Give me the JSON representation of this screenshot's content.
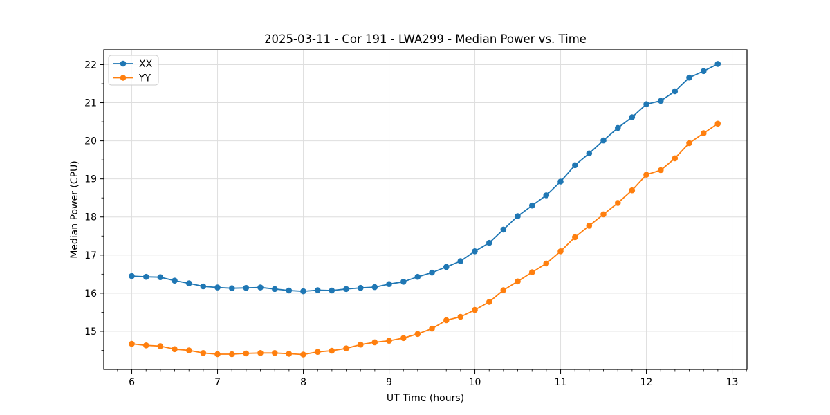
{
  "chart_data": {
    "type": "line",
    "title": "2025-03-11 - Cor 191 - LWA299 - Median Power vs. Time",
    "xlabel": "UT Time (hours)",
    "ylabel": "Median Power (CPU)",
    "xlim": [
      5.673,
      13.173
    ],
    "ylim": [
      14.0,
      22.39
    ],
    "xticks": [
      6,
      7,
      8,
      9,
      10,
      11,
      12,
      13
    ],
    "yticks": [
      15,
      16,
      17,
      18,
      19,
      20,
      21,
      22
    ],
    "x_minor_step": 0.1666667,
    "y_minor_step": 0.5,
    "grid": true,
    "grid_color": "#dedede",
    "legend_position": "upper-left",
    "x": [
      6.0,
      6.167,
      6.333,
      6.5,
      6.667,
      6.833,
      7.0,
      7.167,
      7.333,
      7.5,
      7.667,
      7.833,
      8.0,
      8.167,
      8.333,
      8.5,
      8.667,
      8.833,
      9.0,
      9.167,
      9.333,
      9.5,
      9.667,
      9.833,
      10.0,
      10.167,
      10.333,
      10.5,
      10.667,
      10.833,
      11.0,
      11.167,
      11.333,
      11.5,
      11.667,
      11.833,
      12.0,
      12.167,
      12.333,
      12.5,
      12.667,
      12.833
    ],
    "series": [
      {
        "name": "XX",
        "color": "#1f77b4",
        "values": [
          16.45,
          16.43,
          16.42,
          16.33,
          16.26,
          16.18,
          16.15,
          16.13,
          16.14,
          16.15,
          16.11,
          16.07,
          16.05,
          16.08,
          16.07,
          16.11,
          16.14,
          16.16,
          16.24,
          16.3,
          16.43,
          16.54,
          16.69,
          16.84,
          17.1,
          17.32,
          17.67,
          18.02,
          18.3,
          18.57,
          18.93,
          19.36,
          19.67,
          20.01,
          20.34,
          20.62,
          20.96,
          21.05,
          21.3,
          21.66,
          21.83,
          22.02
        ]
      },
      {
        "name": "YY",
        "color": "#ff7f0e",
        "values": [
          14.67,
          14.63,
          14.61,
          14.53,
          14.5,
          14.43,
          14.4,
          14.4,
          14.42,
          14.43,
          14.43,
          14.41,
          14.39,
          14.46,
          14.49,
          14.55,
          14.65,
          14.71,
          14.75,
          14.82,
          14.93,
          15.07,
          15.29,
          15.38,
          15.56,
          15.77,
          16.08,
          16.31,
          16.55,
          16.78,
          17.1,
          17.47,
          17.77,
          18.07,
          18.37,
          18.7,
          19.11,
          19.23,
          19.54,
          19.94,
          20.2,
          20.45
        ]
      }
    ]
  }
}
